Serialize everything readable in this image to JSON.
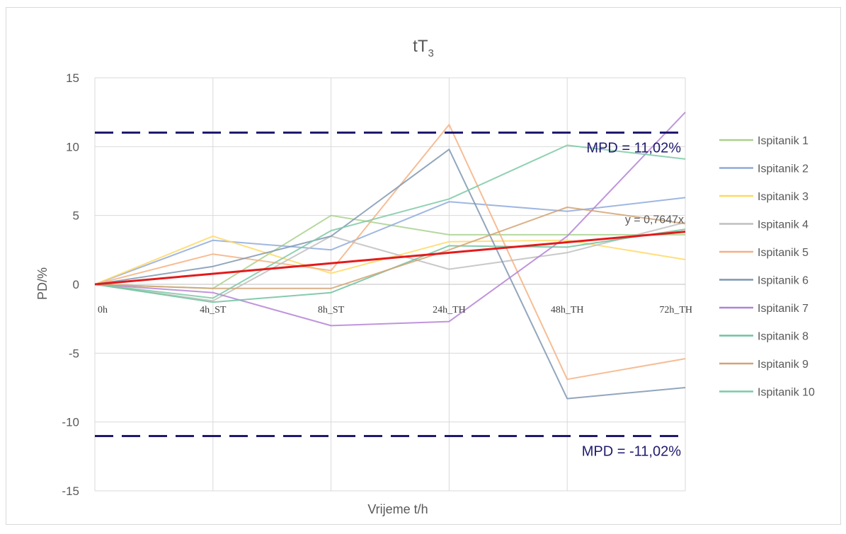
{
  "chart_data": {
    "type": "line",
    "title": "tT",
    "title_subscript": "3",
    "xlabel": "Vrijeme t/h",
    "ylabel": "PD/%",
    "categories": [
      "0h",
      "4h_ST",
      "8h_ST",
      "24h_TH",
      "48h_TH",
      "72h_TH"
    ],
    "ylim": [
      -15,
      15
    ],
    "yticks": [
      15,
      10,
      5,
      0,
      -5,
      -10,
      -15
    ],
    "grid": true,
    "legend_position": "right",
    "series": [
      {
        "name": "Ispitanik 1",
        "color": "#a9d18e",
        "values": [
          0,
          -0.3,
          5.0,
          3.6,
          3.6,
          3.6
        ]
      },
      {
        "name": "Ispitanik 2",
        "color": "#8faadc",
        "values": [
          0,
          3.2,
          2.5,
          6.0,
          5.3,
          6.3
        ]
      },
      {
        "name": "Ispitanik 3",
        "color": "#ffd966",
        "values": [
          0,
          3.5,
          0.8,
          3.1,
          3.2,
          1.8
        ]
      },
      {
        "name": "Ispitanik 4",
        "color": "#bfbfbf",
        "values": [
          0,
          -1.2,
          3.5,
          1.1,
          2.3,
          4.5
        ]
      },
      {
        "name": "Ispitanik 5",
        "color": "#f4b183",
        "values": [
          0,
          2.2,
          1.0,
          11.6,
          -6.9,
          -5.4
        ]
      },
      {
        "name": "Ispitanik 6",
        "color": "#7f96b2",
        "values": [
          0,
          1.3,
          3.5,
          9.8,
          -8.3,
          -7.5
        ]
      },
      {
        "name": "Ispitanik 7",
        "color": "#b482d6",
        "values": [
          0,
          -0.6,
          -3.0,
          -2.7,
          3.5,
          12.5
        ]
      },
      {
        "name": "Ispitanik 8",
        "color": "#70c29d",
        "values": [
          0,
          -1.3,
          -0.6,
          2.8,
          2.7,
          4.0
        ]
      },
      {
        "name": "Ispitanik 9",
        "color": "#d4a373",
        "values": [
          0,
          -0.3,
          -0.3,
          2.5,
          5.6,
          4.4
        ]
      },
      {
        "name": "Ispitanik 10",
        "color": "#7cc9a5",
        "values": [
          0,
          -1.0,
          3.9,
          6.2,
          10.1,
          9.1
        ]
      }
    ],
    "trendline": {
      "label": "y = 0,7647x",
      "slope": 0.7647,
      "color": "#e31a1c"
    },
    "reference_lines": [
      {
        "label": "MPD = 11,02%",
        "value": 11.02,
        "color": "#1f1a6e"
      },
      {
        "label": "MPD = -11,02%",
        "value": -11.02,
        "color": "#1f1a6e"
      }
    ]
  }
}
